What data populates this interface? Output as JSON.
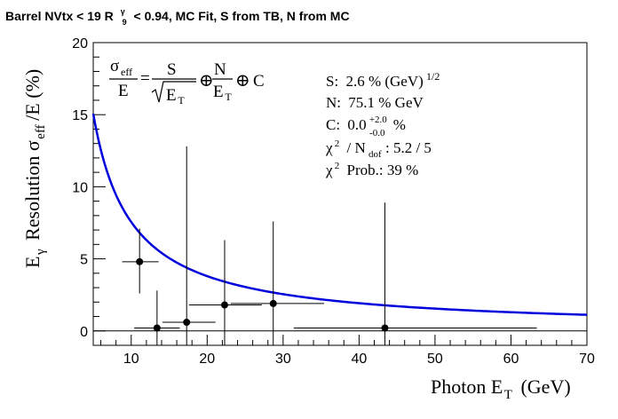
{
  "chart_data": {
    "type": "scatter",
    "title_parts": {
      "pre": "Barrel NVtx < 19 R",
      "sup": "γ",
      "sub": "9",
      "post": "< 0.94, MC Fit, S from TB, N from MC"
    },
    "xlabel": {
      "main": "Photon E",
      "sub": "T",
      "unit": "(GeV)"
    },
    "ylabel": {
      "e": "E",
      "gamma": "γ",
      "res": "Resolution σ",
      "eff": "eff",
      "tail": "/E (%)"
    },
    "xlim": [
      5,
      70
    ],
    "ylim": [
      -1,
      20
    ],
    "xticks": [
      10,
      20,
      30,
      40,
      50,
      60,
      70
    ],
    "yticks": [
      0,
      5,
      10,
      15,
      20
    ],
    "points": [
      {
        "x": 11.1,
        "y": 4.8,
        "xerr_lo": 2.3,
        "xerr_hi": 2.5,
        "yerr_lo": 2.2,
        "yerr_hi": 2.3
      },
      {
        "x": 13.4,
        "y": 0.2,
        "xerr_lo": 3.0,
        "xerr_hi": 3.0,
        "yerr_lo": 1.2,
        "yerr_hi": 2.6
      },
      {
        "x": 17.3,
        "y": 0.6,
        "xerr_lo": 3.2,
        "xerr_hi": 3.8,
        "yerr_lo": 1.6,
        "yerr_hi": 12.2
      },
      {
        "x": 22.3,
        "y": 1.8,
        "xerr_lo": 4.7,
        "xerr_hi": 4.9,
        "yerr_lo": 2.8,
        "yerr_hi": 4.5
      },
      {
        "x": 28.7,
        "y": 1.9,
        "xerr_lo": 5.6,
        "xerr_hi": 6.7,
        "yerr_lo": 2.9,
        "yerr_hi": 5.7
      },
      {
        "x": 43.4,
        "y": 0.2,
        "xerr_lo": 12.0,
        "xerr_hi": 20.0,
        "yerr_lo": 1.2,
        "yerr_hi": 8.7
      }
    ],
    "fit": {
      "S": 2.6,
      "N": 75.1,
      "C": 0.0,
      "color": "#0000dd"
    },
    "legend": {
      "formula": {
        "sigma": "σ",
        "eff": "eff",
        "E": "E",
        "S": "S",
        "N": "N",
        "T": "T",
        "oplus": "⊕",
        "C": "C"
      },
      "S": {
        "label": "S:",
        "value": "2.6 % (GeV)",
        "sup": "1/2"
      },
      "N": {
        "label": "N:",
        "value": "75.1 % GeV"
      },
      "C": {
        "label": "C:",
        "value": "0.0",
        "sup": "+2.0",
        "sub": "-0.0",
        "unit": "%"
      },
      "chi2": {
        "chi": "χ",
        "sq": "2",
        "mid": "/ N",
        "sub": "dof",
        "val": ": 5.2 / 5"
      },
      "prob": {
        "chi": "χ",
        "sq": "2",
        "text": "Prob.: 39 %"
      }
    }
  }
}
